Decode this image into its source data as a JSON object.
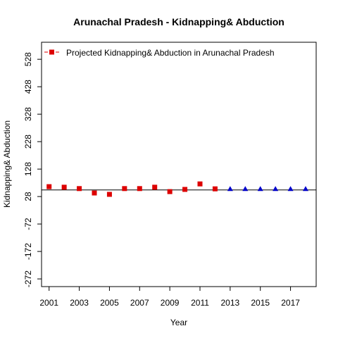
{
  "chart_data": {
    "type": "scatter",
    "title": "Arunachal Pradesh  -  Kidnapping& Abduction",
    "xlabel": "Year",
    "ylabel": "Kidnapping& Abduction",
    "xlim": [
      2000.5,
      2018.7
    ],
    "ylim": [
      -300,
      590
    ],
    "x_ticks": [
      2001,
      2003,
      2005,
      2007,
      2009,
      2011,
      2013,
      2015,
      2017
    ],
    "y_ticks": [
      -272,
      -172,
      -72,
      28,
      128,
      228,
      328,
      428,
      528
    ],
    "grid": false,
    "legend_position": "top-left",
    "legend": {
      "label": "Projected  Kidnapping& Abduction  in  Arunachal Pradesh",
      "marker": "square",
      "color": "#dd0000"
    },
    "series": [
      {
        "marker": "square",
        "color": "#dd0000",
        "x": [
          2001,
          2002,
          2003,
          2004,
          2005,
          2006,
          2007,
          2008,
          2009,
          2010,
          2011,
          2012
        ],
        "y": [
          64,
          62,
          57,
          41,
          36,
          57,
          57,
          62,
          46,
          54,
          74,
          56
        ]
      },
      {
        "marker": "triangle",
        "color": "#0000cc",
        "x": [
          2013,
          2014,
          2015,
          2016,
          2017,
          2018
        ],
        "y": [
          56,
          56,
          56,
          56,
          56,
          56
        ]
      }
    ],
    "reference_line": {
      "y": 52,
      "color": "#000000"
    }
  }
}
